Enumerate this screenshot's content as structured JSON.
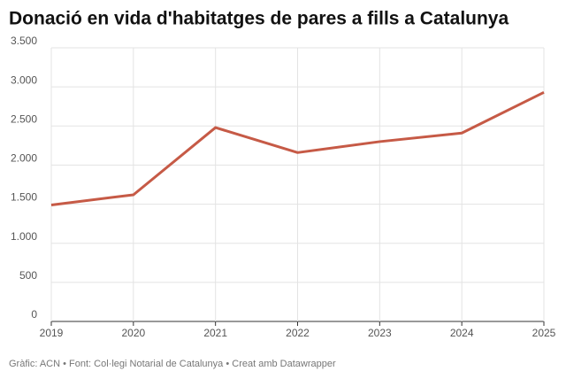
{
  "chart_data": {
    "type": "line",
    "title": "Donació en vida d'habitatges de pares a fills a Catalunya",
    "source": "Gràfic: ACN • Font: Col·legi Notarial de Catalunya • Creat amb Datawrapper",
    "categories": [
      "2019",
      "2020",
      "2021",
      "2022",
      "2023",
      "2024",
      "2025"
    ],
    "values": [
      1490,
      1620,
      2480,
      2160,
      2300,
      2410,
      2930
    ],
    "color": "#c65a46",
    "ylim": [
      0,
      3500
    ],
    "yticks": [
      0,
      500,
      {
        "value": 1000,
        "label": "1.000"
      },
      {
        "value": 1500,
        "label": "1.500"
      },
      {
        "value": 2000,
        "label": "2.000"
      },
      {
        "value": 2500,
        "label": "2.500"
      },
      {
        "value": 3000,
        "label": "3.000"
      },
      {
        "value": 3500,
        "label": "3.500"
      }
    ],
    "grid": true
  }
}
